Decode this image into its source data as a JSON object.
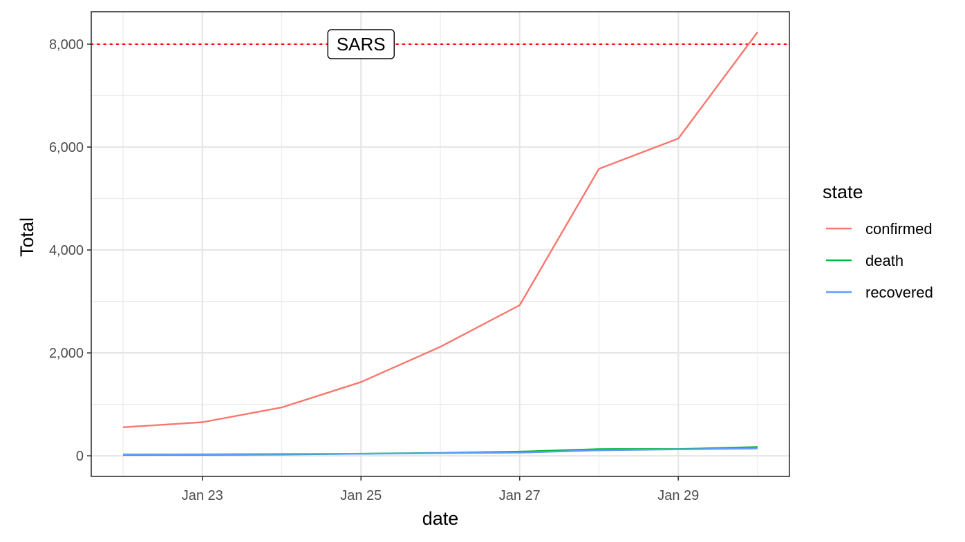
{
  "chart_data": {
    "type": "line",
    "xlabel": "date",
    "ylabel": "Total",
    "x": [
      "2020-01-22",
      "2020-01-23",
      "2020-01-24",
      "2020-01-25",
      "2020-01-26",
      "2020-01-27",
      "2020-01-28",
      "2020-01-29",
      "2020-01-30"
    ],
    "x_ticks": [
      "Jan 23",
      "Jan 25",
      "Jan 27",
      "Jan 29"
    ],
    "y_ticks": [
      "0",
      "2,000",
      "4,000",
      "6,000",
      "8,000"
    ],
    "ylim": [
      -400,
      8630
    ],
    "grid": true,
    "legend": {
      "title": "state",
      "position": "right"
    },
    "series": [
      {
        "name": "confirmed",
        "color": "#F8766D",
        "values": [
          555,
          653,
          941,
          1434,
          2118,
          2927,
          5578,
          6166,
          8235
        ]
      },
      {
        "name": "death",
        "color": "#00BA38",
        "values": [
          17,
          18,
          26,
          42,
          56,
          82,
          131,
          133,
          171
        ]
      },
      {
        "name": "recovered",
        "color": "#619CFF",
        "values": [
          28,
          30,
          36,
          39,
          52,
          61,
          107,
          126,
          143
        ]
      }
    ],
    "annotations": [
      {
        "type": "hline",
        "y": 8000,
        "color": "#FF0000",
        "style": "dotted"
      },
      {
        "type": "label",
        "text": "SARS",
        "x": "2020-01-25",
        "y": 8000
      }
    ]
  }
}
